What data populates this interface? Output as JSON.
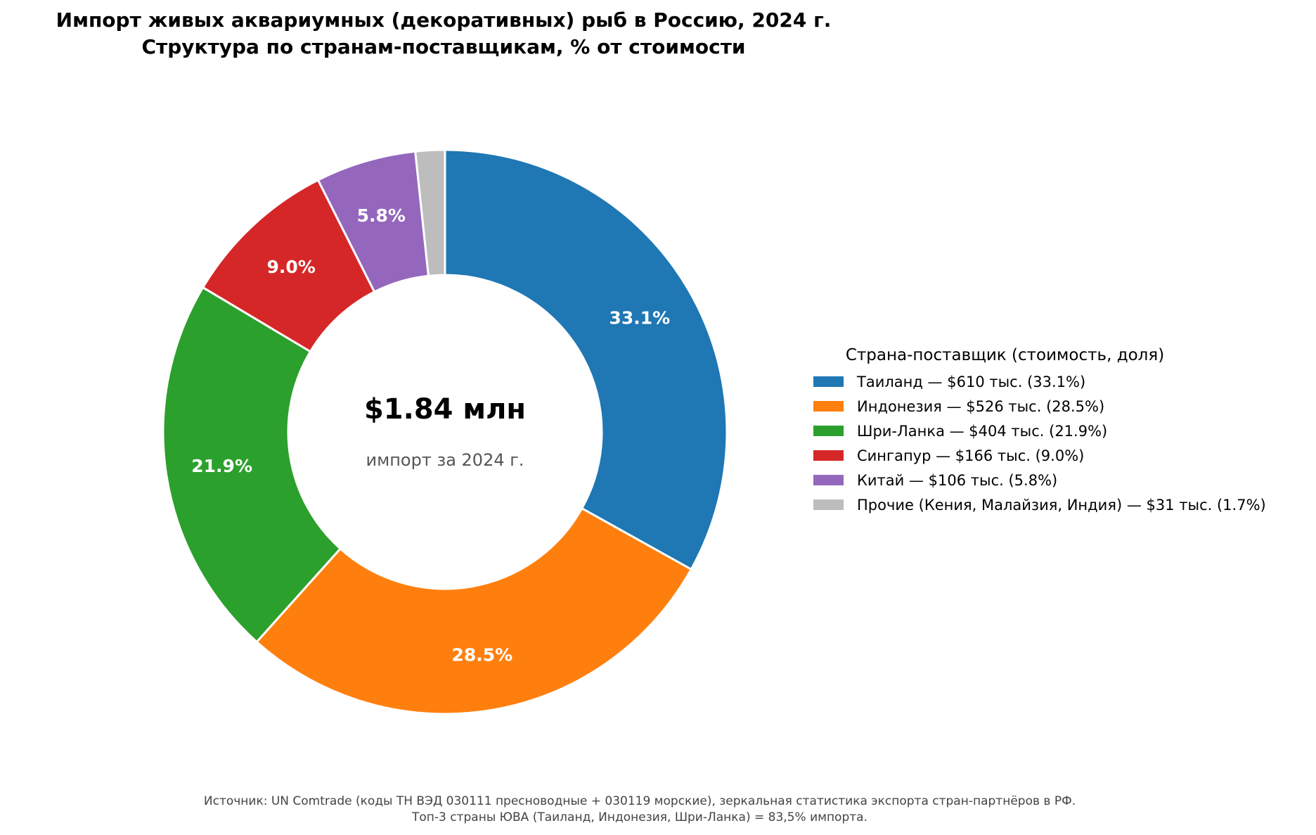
{
  "title": {
    "line1": "Импорт живых аквариумных (декоративных) рыб в Россию, 2024 г.",
    "line2": "Структура по странам-поставщикам, % от стоимости"
  },
  "center": {
    "value": "$1.84 млн",
    "caption": "импорт за 2024 г."
  },
  "legend": {
    "title": "Страна-поставщик (стоимость, доля)",
    "placement": "right",
    "items": [
      {
        "label": "Таиланд — $610 тыс. (33.1%)",
        "color": "#1f77b4"
      },
      {
        "label": "Индонезия — $526 тыс. (28.5%)",
        "color": "#ff7f0e"
      },
      {
        "label": "Шри-Ланка — $404 тыс. (21.9%)",
        "color": "#2ca02c"
      },
      {
        "label": "Сингапур — $166 тыс. (9.0%)",
        "color": "#d62728"
      },
      {
        "label": "Китай — $106 тыс. (5.8%)",
        "color": "#9467bd"
      },
      {
        "label": "Прочие (Кения, Малайзия, Индия) — $31 тыс. (1.7%)",
        "color": "#bdbdbd"
      }
    ]
  },
  "footnote": {
    "line1": "Источник: UN Comtrade (коды ТН ВЭД 030111 пресноводные + 030119 морские), зеркальная статистика экспорта стран-партнёров в РФ.",
    "line2": "Топ-3 страны ЮВА (Таиланд, Индонезия, Шри-Ланка) = 83,5% импорта."
  },
  "chart_data": {
    "type": "pie",
    "donut": true,
    "categories": [
      "Таиланд",
      "Индонезия",
      "Шри-Ланка",
      "Сингапур",
      "Китай",
      "Прочие (Кения, Малайзия, Индия)"
    ],
    "values": [
      610,
      526,
      404,
      166,
      106,
      31
    ],
    "percent": [
      33.1,
      28.5,
      21.9,
      9.0,
      5.8,
      1.7
    ],
    "labels": [
      "33.1%",
      "28.5%",
      "21.9%",
      "9.0%",
      "5.8%",
      ""
    ],
    "colors": [
      "#1f77b4",
      "#ff7f0e",
      "#2ca02c",
      "#d62728",
      "#9467bd",
      "#bdbdbd"
    ],
    "start": "top",
    "direction": "clockwise"
  }
}
